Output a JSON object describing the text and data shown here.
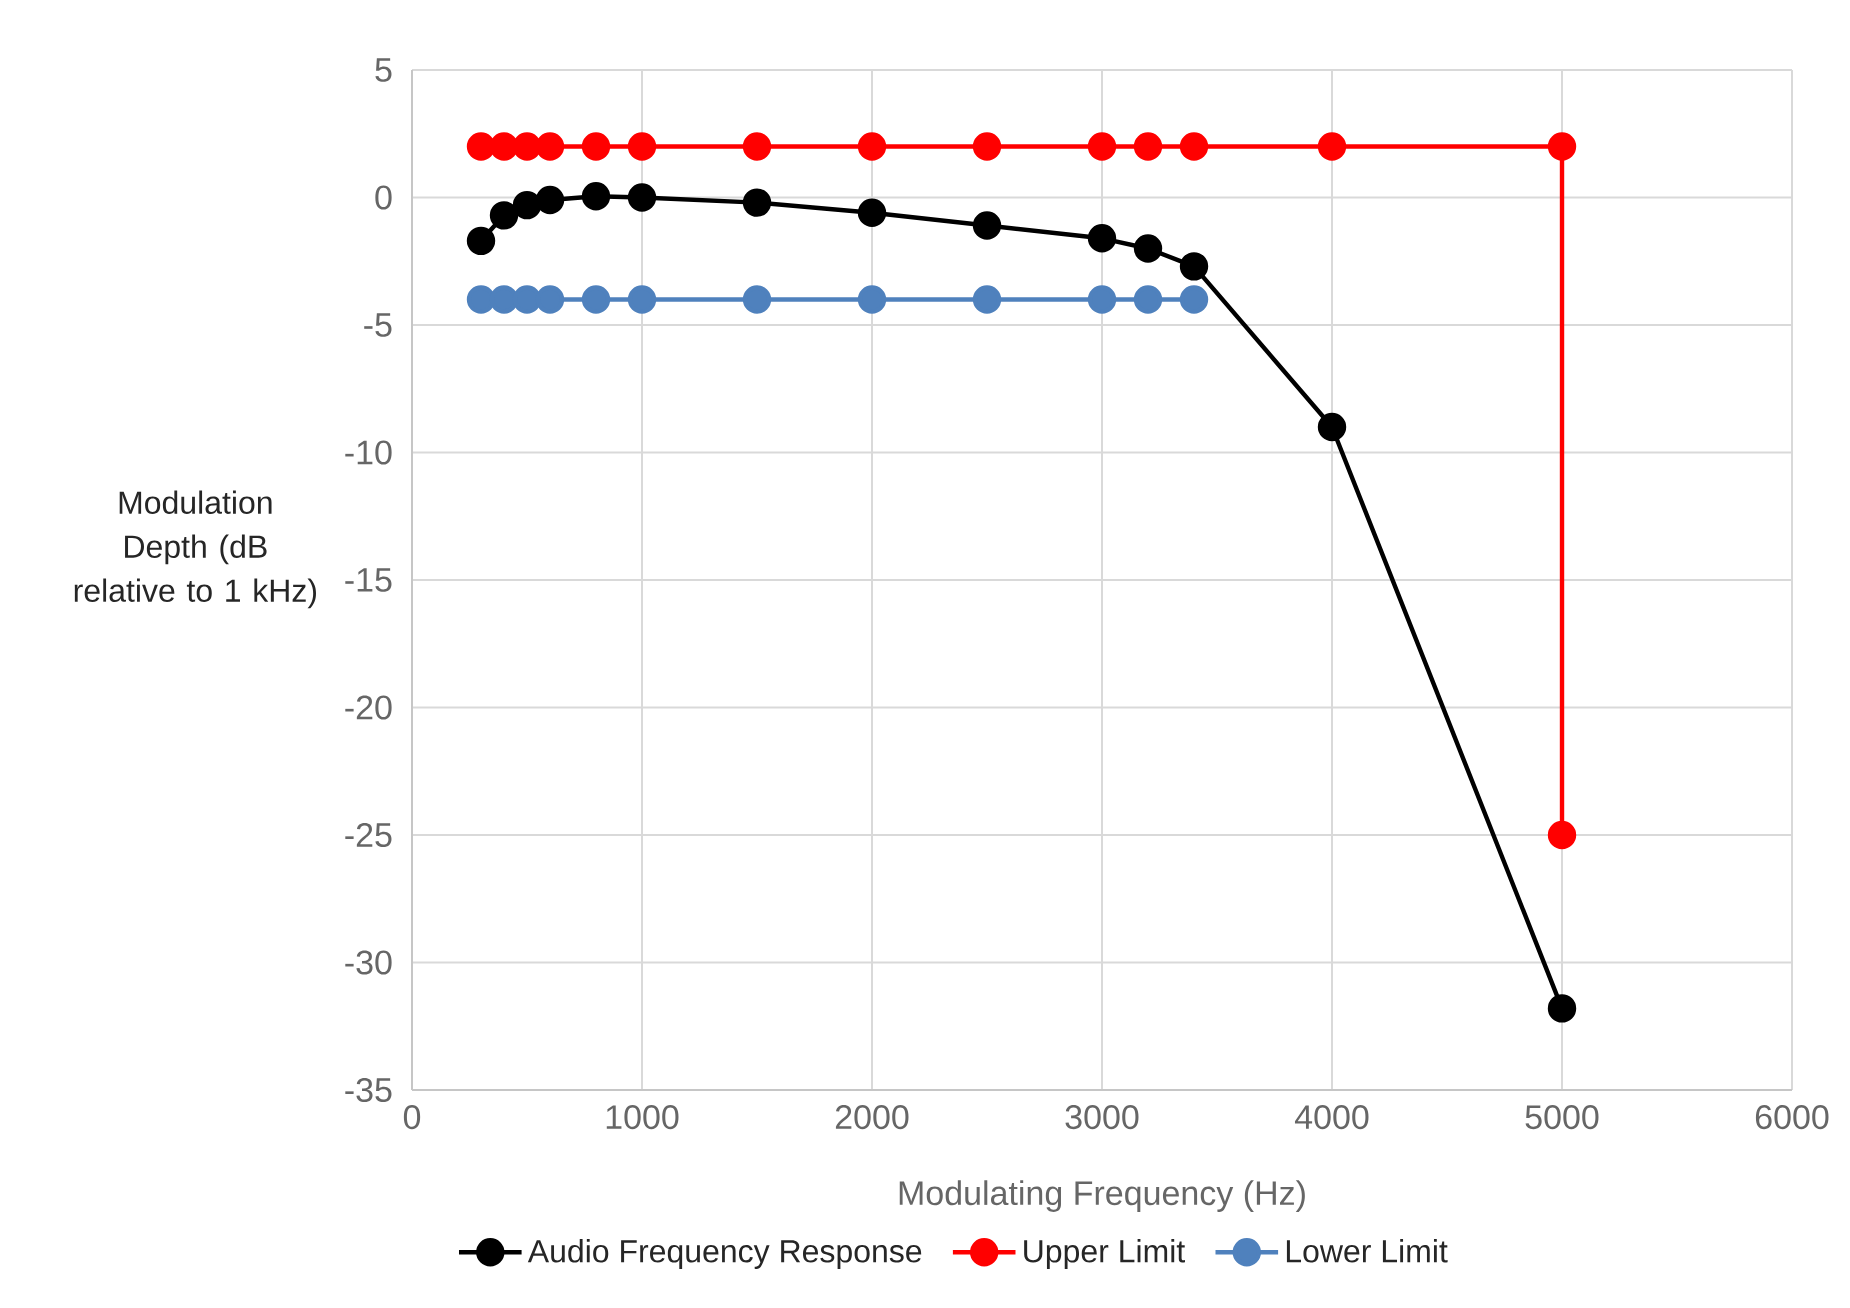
{
  "chart_data": {
    "type": "line",
    "xlabel": "Modulating Frequency (Hz)",
    "ylabel": "Modulation Depth (dB relative to 1 kHz)",
    "xlim": [
      0,
      6000
    ],
    "xticks": [
      0,
      1000,
      2000,
      3000,
      4000,
      5000,
      6000
    ],
    "ylim": [
      -35,
      5
    ],
    "yticks": [
      -35,
      -30,
      -25,
      -20,
      -15,
      -10,
      -5,
      0,
      5
    ],
    "grid": true,
    "legend": "bottom",
    "marker": "circle",
    "line_style": "solid",
    "series": [
      {
        "name": "Audio Frequency Response",
        "color": "#000000",
        "x": [
          300,
          400,
          500,
          600,
          800,
          1000,
          1500,
          2000,
          2500,
          3000,
          3200,
          3400,
          4000,
          5000
        ],
        "values": [
          -1.7,
          -0.7,
          -0.3,
          -0.1,
          0.05,
          0,
          -0.2,
          -0.6,
          -1.1,
          -1.6,
          -2.0,
          -2.7,
          -9.0,
          -31.8
        ]
      },
      {
        "name": "Upper Limit",
        "color": "#ff0000",
        "x": [
          300,
          400,
          500,
          600,
          800,
          1000,
          1500,
          2000,
          2500,
          3000,
          3200,
          3400,
          4000,
          5000,
          5000
        ],
        "values": [
          2,
          2,
          2,
          2,
          2,
          2,
          2,
          2,
          2,
          2,
          2,
          2,
          2,
          2,
          -25
        ]
      },
      {
        "name": "Lower Limit",
        "color": "#4f81bd",
        "x": [
          300,
          400,
          500,
          600,
          800,
          1000,
          1500,
          2000,
          2500,
          3000,
          3200,
          3400
        ],
        "values": [
          -4,
          -4,
          -4,
          -4,
          -4,
          -4,
          -4,
          -4,
          -4,
          -4,
          -4,
          -4
        ]
      }
    ]
  }
}
